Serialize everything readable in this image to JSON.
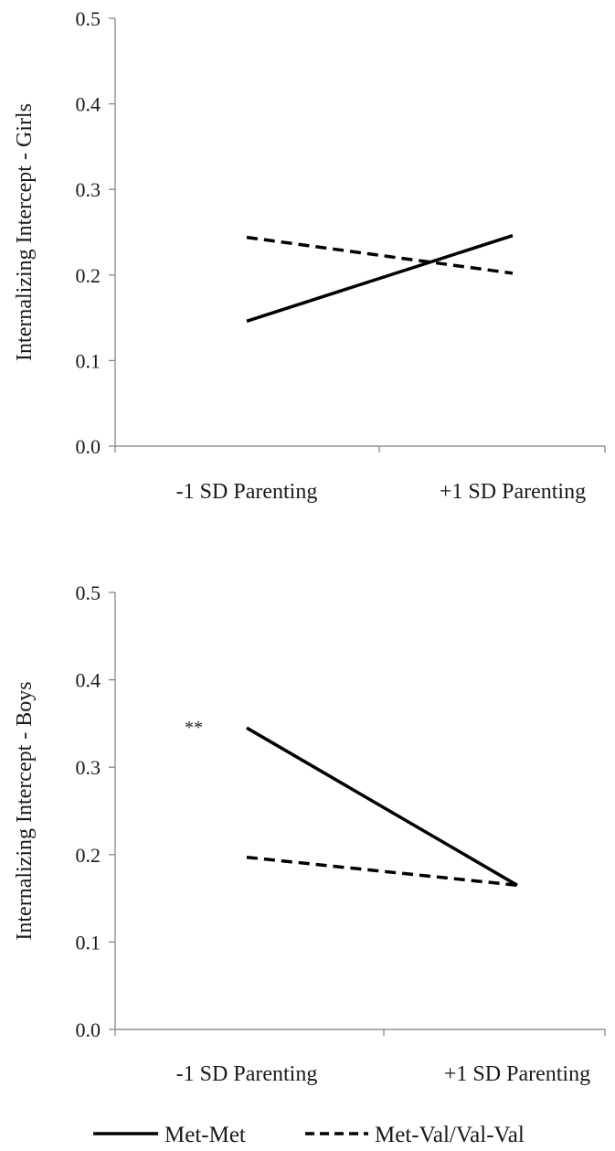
{
  "legend": {
    "placement": "bottom",
    "entries": [
      {
        "name": "Met-Met",
        "line_style": "solid"
      },
      {
        "name": "Met-Val/Val-Val",
        "line_style": "dashed"
      }
    ]
  },
  "chart_data": [
    {
      "type": "line",
      "ylabel": "Internalizing Intercept - Girls",
      "ylim": [
        0,
        0.5
      ],
      "yticks": [
        "0.0",
        "0.1",
        "0.2",
        "0.3",
        "0.4",
        "0.5"
      ],
      "categories": [
        "-1 SD Parenting",
        "+1 SD Parenting"
      ],
      "grid": false,
      "series": [
        {
          "name": "Met-Met",
          "values": [
            0.146,
            0.246
          ]
        },
        {
          "name": "Met-Val/Val-Val",
          "values": [
            0.244,
            0.202
          ]
        }
      ],
      "annotations": []
    },
    {
      "type": "line",
      "ylabel": "Internalizing Intercept - Boys",
      "ylim": [
        0,
        0.5
      ],
      "yticks": [
        "0.0",
        "0.1",
        "0.2",
        "0.3",
        "0.4",
        "0.5"
      ],
      "categories": [
        "-1 SD Parenting",
        "+1 SD Parenting"
      ],
      "grid": false,
      "series": [
        {
          "name": "Met-Met",
          "values": [
            0.345,
            0.165
          ]
        },
        {
          "name": "Met-Val/Val-Val",
          "values": [
            0.197,
            0.165
          ]
        }
      ],
      "annotations": [
        {
          "text": "**",
          "category_index": 0,
          "y": 0.345
        }
      ]
    }
  ]
}
